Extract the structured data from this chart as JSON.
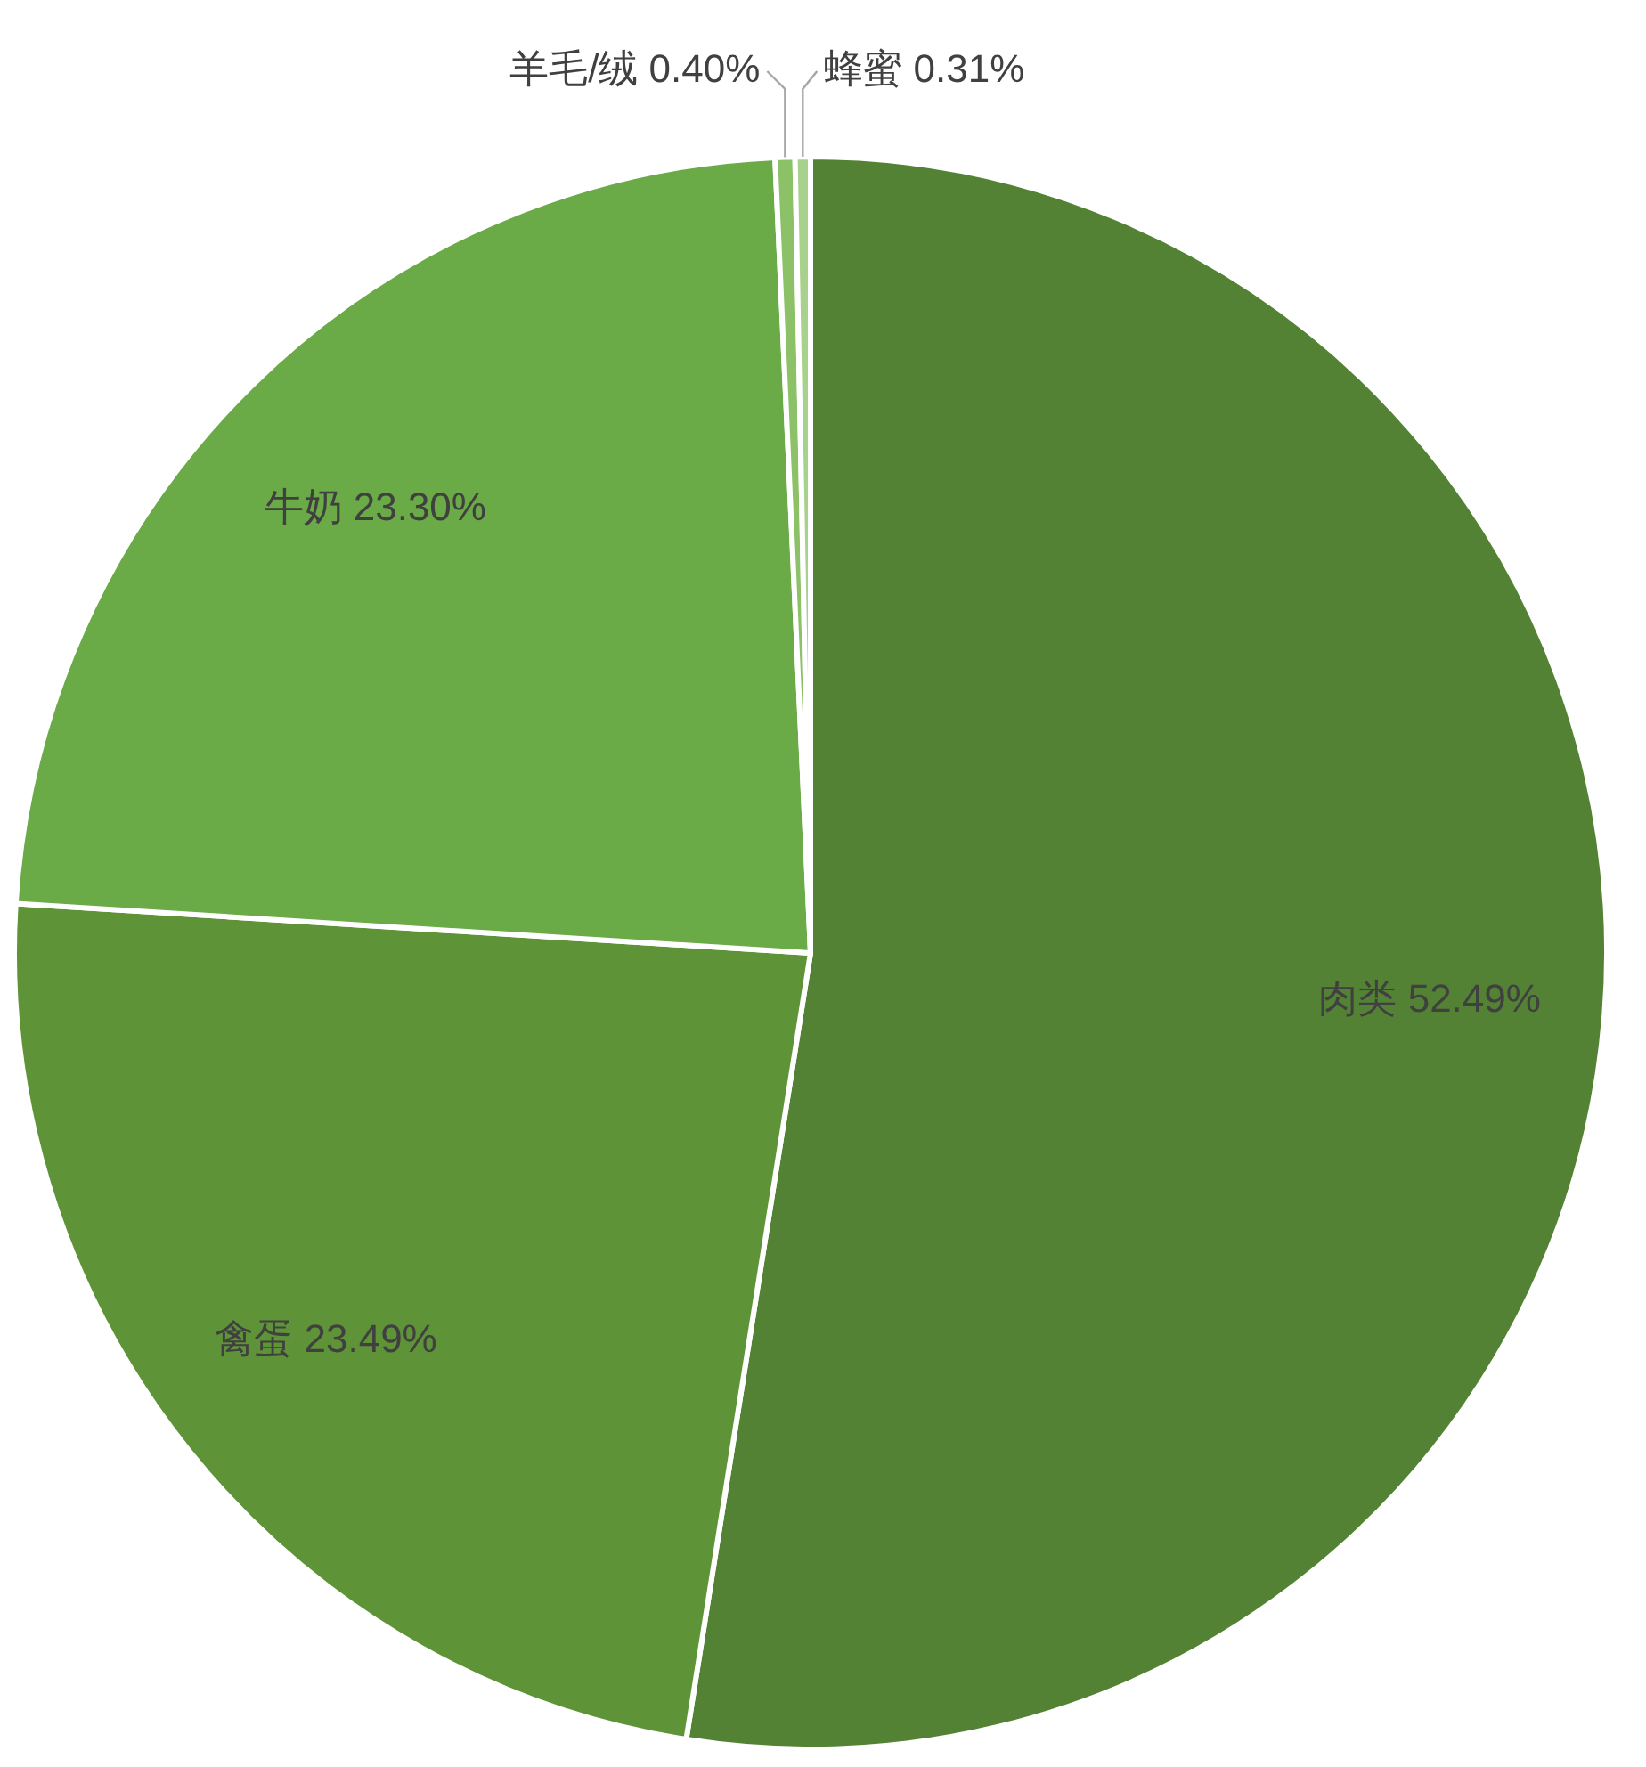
{
  "chart_data": {
    "type": "pie",
    "categories": [
      "肉类",
      "禽蛋",
      "牛奶",
      "羊毛/绒",
      "蜂蜜"
    ],
    "values": [
      52.49,
      23.49,
      23.3,
      0.4,
      0.31
    ],
    "value_labels": [
      "52.49%",
      "23.49%",
      "23.30%",
      "0.40%",
      "0.31%"
    ],
    "colors": [
      "#548235",
      "#5e9437",
      "#6aab47",
      "#8cc168",
      "#a9d18e"
    ]
  }
}
